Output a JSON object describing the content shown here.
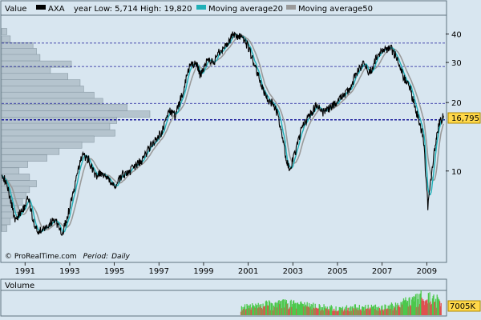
{
  "legend": {
    "value_label": "Value",
    "series_label": "AXA",
    "range_text": "year Low: 5,714 High: 19,820",
    "ma20_label": "Moving average20",
    "ma50_label": "Moving average50"
  },
  "watermark": "© ProRealTime.com",
  "period_label": "Period:",
  "period_value": "Daily",
  "last_price_label": "16,795",
  "volume_title": "Volume",
  "volume_last_label": "7005K",
  "colors": {
    "background": "#d8e6f0",
    "price": "#000000",
    "ma20": "#1fb0b8",
    "ma50": "#9a9a9a",
    "guide_lines": "#1a1a9a",
    "profile_bar": "#b5c4ce",
    "volume_up": "#4cc84c",
    "volume_down": "#e05050",
    "price_tag": "#ffd84a"
  },
  "chart_data": {
    "type": "line",
    "y_scale": "log",
    "ylim": [
      4,
      48
    ],
    "y_ticks": [
      10,
      20,
      30,
      40
    ],
    "x_ticks": [
      "1991",
      "1993",
      "1995",
      "1997",
      "1999",
      "2001",
      "2003",
      "2005",
      "2007",
      "2009"
    ],
    "xlim": [
      1990.0,
      2009.9
    ],
    "price_series": {
      "name": "AXA",
      "x": [
        1990.0,
        1990.3,
        1990.6,
        1990.9,
        1991.2,
        1991.5,
        1991.8,
        1992.1,
        1992.4,
        1992.7,
        1993.0,
        1993.3,
        1993.6,
        1993.9,
        1994.2,
        1994.5,
        1994.8,
        1995.1,
        1995.4,
        1995.7,
        1996.0,
        1996.3,
        1996.6,
        1996.9,
        1997.2,
        1997.5,
        1997.8,
        1998.1,
        1998.4,
        1998.7,
        1998.9,
        1999.2,
        1999.5,
        1999.8,
        2000.1,
        2000.4,
        2000.7,
        2001.0,
        2001.3,
        2001.6,
        2001.8,
        2002.1,
        2002.4,
        2002.7,
        2002.9,
        2003.2,
        2003.5,
        2003.8,
        2004.1,
        2004.4,
        2004.7,
        2005.0,
        2005.3,
        2005.6,
        2005.9,
        2006.2,
        2006.5,
        2006.8,
        2007.1,
        2007.4,
        2007.7,
        2008.0,
        2008.3,
        2008.6,
        2008.9,
        2009.1,
        2009.4,
        2009.6,
        2009.8
      ],
      "y": [
        10.0,
        8.2,
        6.2,
        6.6,
        7.6,
        5.6,
        5.4,
        5.8,
        6.2,
        5.2,
        6.6,
        8.8,
        11.8,
        11.2,
        9.5,
        9.8,
        9.0,
        8.6,
        9.6,
        9.9,
        10.5,
        11.2,
        12.6,
        13.8,
        15.0,
        18.5,
        17.5,
        22.0,
        28.5,
        30.0,
        26.5,
        30.5,
        30.0,
        34.0,
        36.0,
        40.0,
        38.5,
        36.0,
        30.0,
        24.5,
        21.5,
        20.0,
        17.5,
        12.0,
        10.0,
        12.5,
        16.0,
        17.5,
        19.5,
        18.0,
        19.0,
        20.0,
        21.5,
        23.0,
        27.0,
        29.5,
        27.0,
        31.5,
        34.0,
        35.0,
        31.5,
        26.0,
        23.0,
        18.0,
        14.0,
        7.0,
        12.5,
        16.0,
        17.5
      ]
    },
    "ma20_series": {
      "name": "Moving average20"
    },
    "ma50_series": {
      "name": "Moving average50"
    },
    "guide_lines": [
      36.5,
      28.8,
      19.82,
      16.795
    ],
    "volume_profile": [
      {
        "price": 41,
        "value": 3
      },
      {
        "price": 38,
        "value": 5
      },
      {
        "price": 35.5,
        "value": 18
      },
      {
        "price": 33.5,
        "value": 20
      },
      {
        "price": 31.5,
        "value": 22
      },
      {
        "price": 29.5,
        "value": 40
      },
      {
        "price": 27.7,
        "value": 28
      },
      {
        "price": 26,
        "value": 38
      },
      {
        "price": 24.4,
        "value": 45
      },
      {
        "price": 22.9,
        "value": 47
      },
      {
        "price": 21.5,
        "value": 53
      },
      {
        "price": 20.2,
        "value": 58
      },
      {
        "price": 19,
        "value": 72
      },
      {
        "price": 17.8,
        "value": 85
      },
      {
        "price": 16.7,
        "value": 66
      },
      {
        "price": 15.7,
        "value": 62
      },
      {
        "price": 14.7,
        "value": 65
      },
      {
        "price": 13.8,
        "value": 53
      },
      {
        "price": 13,
        "value": 46
      },
      {
        "price": 12.2,
        "value": 33
      },
      {
        "price": 11.4,
        "value": 26
      },
      {
        "price": 10.7,
        "value": 15
      },
      {
        "price": 10,
        "value": 10
      },
      {
        "price": 9.4,
        "value": 16
      },
      {
        "price": 8.8,
        "value": 20
      },
      {
        "price": 8.3,
        "value": 16
      },
      {
        "price": 7.8,
        "value": 14
      },
      {
        "price": 7.3,
        "value": 12
      },
      {
        "price": 6.8,
        "value": 10
      },
      {
        "price": 6.4,
        "value": 7
      },
      {
        "price": 6.0,
        "value": 5
      },
      {
        "price": 5.6,
        "value": 3
      }
    ],
    "volume_ylim": [
      0,
      9000
    ],
    "volume_series": {
      "name": "Volume",
      "x": [
        2000.7,
        2001.0,
        2001.3,
        2001.6,
        2001.9,
        2002.2,
        2002.5,
        2002.8,
        2003.1,
        2003.4,
        2003.7,
        2004.0,
        2004.3,
        2004.6,
        2004.9,
        2005.2,
        2005.5,
        2005.8,
        2006.1,
        2006.4,
        2006.7,
        2007.0,
        2007.3,
        2007.6,
        2007.9,
        2008.2,
        2008.5,
        2008.8,
        2009.1,
        2009.4,
        2009.7
      ],
      "values": [
        3000,
        3800,
        3500,
        4200,
        4600,
        4000,
        5200,
        4800,
        4400,
        4100,
        3800,
        3600,
        3300,
        3100,
        3000,
        2900,
        3200,
        3400,
        3000,
        3600,
        3300,
        3100,
        3500,
        3800,
        4800,
        5400,
        6000,
        8200,
        7000,
        6200,
        7005
      ]
    }
  }
}
